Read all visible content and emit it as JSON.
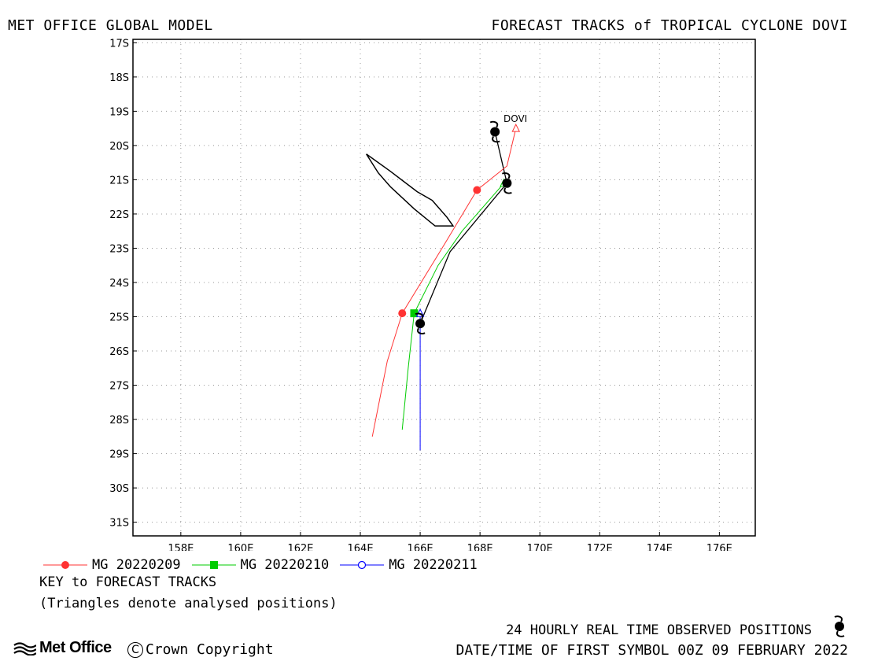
{
  "header": {
    "left_title": "MET OFFICE GLOBAL MODEL",
    "right_title": "FORECAST TRACKS of TROPICAL CYCLONE DOVI"
  },
  "map": {
    "lon_range": [
      156.4,
      177.2
    ],
    "lat_range": [
      -31.4,
      -16.9
    ],
    "lon_ticks": [
      "158E",
      "160E",
      "162E",
      "164E",
      "166E",
      "168E",
      "170E",
      "172E",
      "174E",
      "176E"
    ],
    "lat_ticks": [
      "17S",
      "18S",
      "19S",
      "20S",
      "21S",
      "22S",
      "23S",
      "24S",
      "25S",
      "26S",
      "27S",
      "28S",
      "29S",
      "30S",
      "31S"
    ],
    "grid": true,
    "storm_label": "DOVI",
    "island_outline": [
      [
        164.2,
        -20.25
      ],
      [
        165.0,
        -20.75
      ],
      [
        165.9,
        -21.35
      ],
      [
        166.4,
        -21.6
      ],
      [
        166.9,
        -22.1
      ],
      [
        167.1,
        -22.35
      ],
      [
        166.5,
        -22.35
      ],
      [
        165.8,
        -21.85
      ],
      [
        165.0,
        -21.2
      ],
      [
        164.6,
        -20.8
      ],
      [
        164.2,
        -20.25
      ]
    ]
  },
  "tracks": [
    {
      "name": "MG 20220209",
      "color": "#ff3333",
      "marker": "filled-circle",
      "analysed": [
        [
          169.2,
          -19.5
        ]
      ],
      "points": [
        [
          169.2,
          -19.5
        ],
        [
          168.9,
          -20.6
        ],
        [
          167.9,
          -21.3
        ],
        [
          166.8,
          -22.9
        ],
        [
          165.4,
          -24.9
        ],
        [
          164.9,
          -26.3
        ],
        [
          164.4,
          -28.5
        ]
      ],
      "markers": [
        [
          167.9,
          -21.3
        ],
        [
          165.4,
          -24.9
        ]
      ]
    },
    {
      "name": "MG 20220210",
      "color": "#00cc00",
      "marker": "filled-square",
      "analysed": [
        [
          168.8,
          -21.1
        ]
      ],
      "points": [
        [
          168.8,
          -21.1
        ],
        [
          168.3,
          -21.6
        ],
        [
          167.4,
          -22.5
        ],
        [
          166.6,
          -23.5
        ],
        [
          165.8,
          -24.9
        ],
        [
          165.6,
          -26.5
        ],
        [
          165.4,
          -28.3
        ]
      ],
      "markers": [
        [
          165.8,
          -24.9
        ]
      ]
    },
    {
      "name": "MG 20220211",
      "color": "#0000ff",
      "marker": "open-circle",
      "analysed": [
        [
          166.0,
          -24.9
        ]
      ],
      "points": [
        [
          166.0,
          -24.9
        ],
        [
          166.0,
          -26.5
        ],
        [
          166.0,
          -28.9
        ]
      ],
      "markers": []
    }
  ],
  "observed": {
    "points": [
      [
        168.5,
        -19.6
      ],
      [
        168.9,
        -21.1
      ],
      [
        167.0,
        -23.1
      ],
      [
        166.0,
        -25.2
      ]
    ],
    "symbols": [
      [
        168.5,
        -19.6
      ],
      [
        168.9,
        -21.1
      ],
      [
        166.0,
        -25.2
      ]
    ]
  },
  "legend": {
    "items": [
      {
        "label": "MG 20220209",
        "color": "#ff3333",
        "marker": "filled-circle"
      },
      {
        "label": "MG 20220210",
        "color": "#00cc00",
        "marker": "filled-square"
      },
      {
        "label": "MG 20220211",
        "color": "#0000ff",
        "marker": "open-circle"
      }
    ],
    "key_title": "KEY to FORECAST TRACKS",
    "key_note": "(Triangles denote analysed positions)"
  },
  "footer": {
    "observed_text": "24 HOURLY REAL TIME OBSERVED POSITIONS",
    "date_text": "DATE/TIME OF FIRST SYMBOL 00Z 09 FEBRUARY 2022",
    "logo_text": "Met Office",
    "copyright_text": "Crown Copyright",
    "copyright_symbol": "C"
  }
}
